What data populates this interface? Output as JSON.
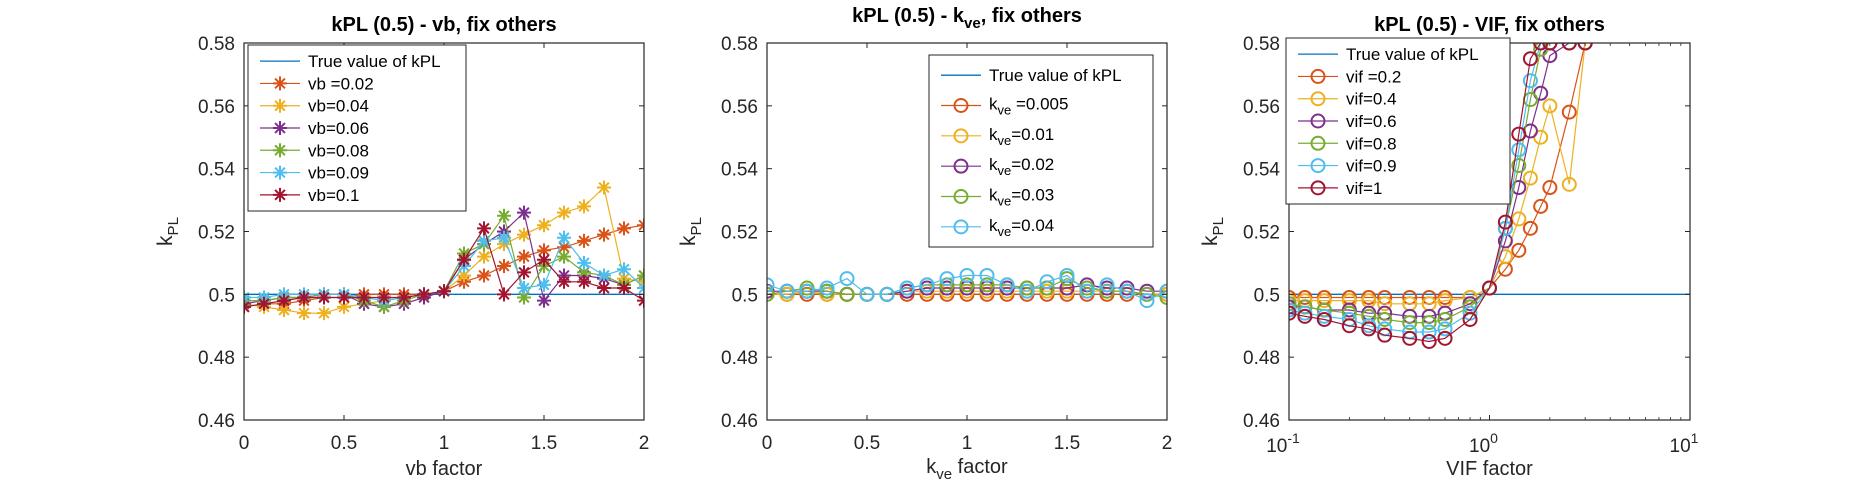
{
  "figure": {
    "legend_line_colors": {
      "true_value": "#0072BD"
    },
    "colors": [
      "#D95319",
      "#EDB120",
      "#7E2F8E",
      "#77AC30",
      "#4DBEEE",
      "#A2142F"
    ]
  },
  "chart_data": [
    {
      "type": "line",
      "title": "kPL (0.5) - vb, fix others",
      "xlabel": "vb factor",
      "ylabel": {
        "main": "k",
        "sub": "PL"
      },
      "xscale": "linear",
      "xlim": [
        0,
        2
      ],
      "ylim": [
        0.46,
        0.58
      ],
      "xticks": [
        0,
        0.5,
        1,
        1.5,
        2
      ],
      "xticklabels": [
        "0",
        "0.5",
        "1",
        "1.5",
        "2"
      ],
      "yticks": [
        0.46,
        0.48,
        0.5,
        0.52,
        0.54,
        0.56,
        0.58
      ],
      "yticklabels": [
        "0.46",
        "0.48",
        "0.5",
        "0.52",
        "0.54",
        "0.56",
        "0.58"
      ],
      "marker": "asterisk",
      "legend_position": "top-left",
      "true_value": {
        "name": "True value of kPL",
        "value": 0.5
      },
      "x": [
        0,
        0.1,
        0.2,
        0.3,
        0.4,
        0.5,
        0.6,
        0.7,
        0.8,
        0.9,
        1.0,
        1.1,
        1.2,
        1.3,
        1.4,
        1.5,
        1.6,
        1.7,
        1.8,
        1.9,
        2.0
      ],
      "series": [
        {
          "name": "vb =0.02",
          "values": [
            0.496,
            0.497,
            0.497,
            0.498,
            0.499,
            0.499,
            0.5,
            0.5,
            0.5,
            0.5,
            0.501,
            0.504,
            0.506,
            0.509,
            0.512,
            0.514,
            0.515,
            0.517,
            0.519,
            0.521,
            0.522
          ]
        },
        {
          "name": "vb=0.04",
          "values": [
            0.497,
            0.496,
            0.495,
            0.494,
            0.494,
            0.496,
            0.497,
            0.498,
            0.499,
            0.5,
            0.501,
            0.506,
            0.512,
            0.516,
            0.519,
            0.522,
            0.526,
            0.528,
            0.534,
            0.505,
            0.504
          ]
        },
        {
          "name": "vb=0.06",
          "values": [
            0.497,
            0.498,
            0.499,
            0.499,
            0.5,
            0.5,
            0.497,
            0.496,
            0.497,
            0.499,
            0.501,
            0.511,
            0.516,
            0.52,
            0.526,
            0.498,
            0.506,
            0.506,
            0.505,
            0.503,
            0.506
          ]
        },
        {
          "name": "vb=0.08",
          "values": [
            0.498,
            0.498,
            0.499,
            0.499,
            0.5,
            0.5,
            0.498,
            0.496,
            0.498,
            0.5,
            0.501,
            0.513,
            0.516,
            0.525,
            0.499,
            0.509,
            0.512,
            0.507,
            0.506,
            0.503,
            0.506
          ]
        },
        {
          "name": "vb=0.09",
          "values": [
            0.499,
            0.499,
            0.5,
            0.5,
            0.5,
            0.5,
            0.499,
            0.498,
            0.499,
            0.5,
            0.501,
            0.509,
            0.517,
            0.518,
            0.502,
            0.503,
            0.518,
            0.51,
            0.506,
            0.508,
            0.502
          ]
        },
        {
          "name": "vb=0.1",
          "values": [
            0.496,
            0.497,
            0.498,
            0.499,
            0.499,
            0.499,
            0.499,
            0.499,
            0.499,
            0.5,
            0.501,
            0.511,
            0.521,
            0.5,
            0.507,
            0.511,
            0.504,
            0.504,
            0.502,
            0.502,
            0.498
          ]
        }
      ]
    },
    {
      "type": "line",
      "title": {
        "main": "kPL (0.5) - k",
        "sub": "ve",
        "rest": ", fix others"
      },
      "xlabel": {
        "main": "k",
        "sub": "ve",
        "rest": " factor"
      },
      "ylabel": {
        "main": "k",
        "sub": "PL"
      },
      "xscale": "linear",
      "xlim": [
        0,
        2
      ],
      "ylim": [
        0.46,
        0.58
      ],
      "xticks": [
        0,
        0.5,
        1,
        1.5,
        2
      ],
      "xticklabels": [
        "0",
        "0.5",
        "1",
        "1.5",
        "2"
      ],
      "yticks": [
        0.46,
        0.48,
        0.5,
        0.52,
        0.54,
        0.56,
        0.58
      ],
      "yticklabels": [
        "0.46",
        "0.48",
        "0.5",
        "0.52",
        "0.54",
        "0.56",
        "0.58"
      ],
      "marker": "circle",
      "legend_position": "top-right",
      "true_value": {
        "name": "True value of kPL",
        "value": 0.5
      },
      "x": [
        0,
        0.1,
        0.2,
        0.3,
        0.4,
        0.5,
        0.6,
        0.7,
        0.8,
        0.9,
        1.0,
        1.1,
        1.2,
        1.3,
        1.4,
        1.5,
        1.6,
        1.7,
        1.8,
        1.9,
        2.0
      ],
      "series": [
        {
          "name": "=0.005",
          "label": {
            "main": "k",
            "sub": "ve",
            "rest": " =0.005"
          },
          "values": [
            0.5,
            0.5,
            0.5,
            0.5,
            0.5,
            0.5,
            0.5,
            0.5,
            0.5,
            0.5,
            0.5,
            0.5,
            0.5,
            0.5,
            0.5,
            0.5,
            0.5,
            0.5,
            0.5,
            0.5,
            0.5
          ]
        },
        {
          "name": "=0.01",
          "label": {
            "main": "k",
            "sub": "ve",
            "rest": "=0.01"
          },
          "values": [
            0.5,
            0.5,
            0.501,
            0.5,
            0.5,
            0.5,
            0.5,
            0.501,
            0.501,
            0.501,
            0.501,
            0.501,
            0.501,
            0.501,
            0.501,
            0.501,
            0.501,
            0.501,
            0.501,
            0.5,
            0.5
          ]
        },
        {
          "name": "=0.02",
          "label": {
            "main": "k",
            "sub": "ve",
            "rest": "=0.02"
          },
          "values": [
            0.501,
            0.501,
            0.501,
            0.501,
            0.5,
            0.5,
            0.5,
            0.501,
            0.502,
            0.502,
            0.502,
            0.502,
            0.502,
            0.502,
            0.502,
            0.502,
            0.503,
            0.502,
            0.502,
            0.501,
            0.501
          ]
        },
        {
          "name": "=0.03",
          "label": {
            "main": "k",
            "sub": "ve",
            "rest": "=0.03"
          },
          "values": [
            0.5,
            0.501,
            0.502,
            0.501,
            0.5,
            0.5,
            0.5,
            0.502,
            0.503,
            0.503,
            0.503,
            0.503,
            0.503,
            0.502,
            0.502,
            0.505,
            0.502,
            0.501,
            0.501,
            0.5,
            0.499
          ]
        },
        {
          "name": "=0.04",
          "label": {
            "main": "k",
            "sub": "ve",
            "rest": "=0.04"
          },
          "values": [
            0.503,
            0.501,
            0.501,
            0.502,
            0.505,
            0.5,
            0.5,
            0.502,
            0.503,
            0.505,
            0.506,
            0.506,
            0.503,
            0.501,
            0.504,
            0.506,
            0.501,
            0.503,
            0.501,
            0.498,
            0.501
          ]
        }
      ]
    },
    {
      "type": "line",
      "title": "kPL (0.5) - VIF, fix others",
      "xlabel": "VIF factor",
      "ylabel": {
        "main": "k",
        "sub": "PL"
      },
      "xscale": "log",
      "xlim": [
        0.1,
        10
      ],
      "ylim": [
        0.46,
        0.58
      ],
      "xticks": [
        0.1,
        1,
        10
      ],
      "xticklabels": [
        {
          "base": "10",
          "exp": "-1"
        },
        {
          "base": "10",
          "exp": "0"
        },
        {
          "base": "10",
          "exp": "1"
        }
      ],
      "yticks": [
        0.46,
        0.48,
        0.5,
        0.52,
        0.54,
        0.56,
        0.58
      ],
      "yticklabels": [
        "0.46",
        "0.48",
        "0.5",
        "0.52",
        "0.54",
        "0.56",
        "0.58"
      ],
      "marker": "circle",
      "legend_position": "top-left",
      "true_value": {
        "name": "True value of kPL",
        "value": 0.5
      },
      "x": [
        0.1,
        0.12,
        0.15,
        0.2,
        0.25,
        0.3,
        0.4,
        0.5,
        0.6,
        0.8,
        1.0,
        1.2,
        1.4,
        1.6,
        1.8,
        2.0,
        2.5,
        3.0
      ],
      "series": [
        {
          "name": "vif =0.2",
          "values": [
            0.499,
            0.499,
            0.499,
            0.499,
            0.499,
            0.499,
            0.499,
            0.499,
            0.499,
            0.499,
            0.502,
            0.508,
            0.514,
            0.521,
            0.528,
            0.534,
            0.558,
            0.58
          ]
        },
        {
          "name": "vif=0.4",
          "values": [
            0.498,
            0.498,
            0.498,
            0.498,
            0.498,
            0.497,
            0.497,
            0.497,
            0.498,
            0.499,
            0.502,
            0.512,
            0.524,
            0.537,
            0.55,
            0.56,
            0.535,
            0.58
          ]
        },
        {
          "name": "vif=0.6",
          "values": [
            0.496,
            0.496,
            0.495,
            0.495,
            0.494,
            0.494,
            0.493,
            0.493,
            0.494,
            0.497,
            0.502,
            0.517,
            0.534,
            0.552,
            0.564,
            0.576,
            0.58,
            0.58
          ]
        },
        {
          "name": "vif=0.8",
          "values": [
            0.497,
            0.496,
            0.495,
            0.494,
            0.493,
            0.492,
            0.491,
            0.491,
            0.492,
            0.496,
            0.502,
            0.521,
            0.541,
            0.562,
            0.578,
            0.58,
            0.58,
            0.58
          ]
        },
        {
          "name": "vif=0.9",
          "values": [
            0.495,
            0.494,
            0.493,
            0.492,
            0.49,
            0.489,
            0.488,
            0.488,
            0.489,
            0.494,
            0.502,
            0.521,
            0.546,
            0.568,
            0.58,
            0.58,
            0.58,
            0.58
          ]
        },
        {
          "name": "vif=1",
          "values": [
            0.494,
            0.493,
            0.492,
            0.49,
            0.489,
            0.487,
            0.486,
            0.485,
            0.486,
            0.492,
            0.502,
            0.523,
            0.551,
            0.575,
            0.58,
            0.58,
            0.58,
            0.58
          ]
        }
      ]
    }
  ]
}
